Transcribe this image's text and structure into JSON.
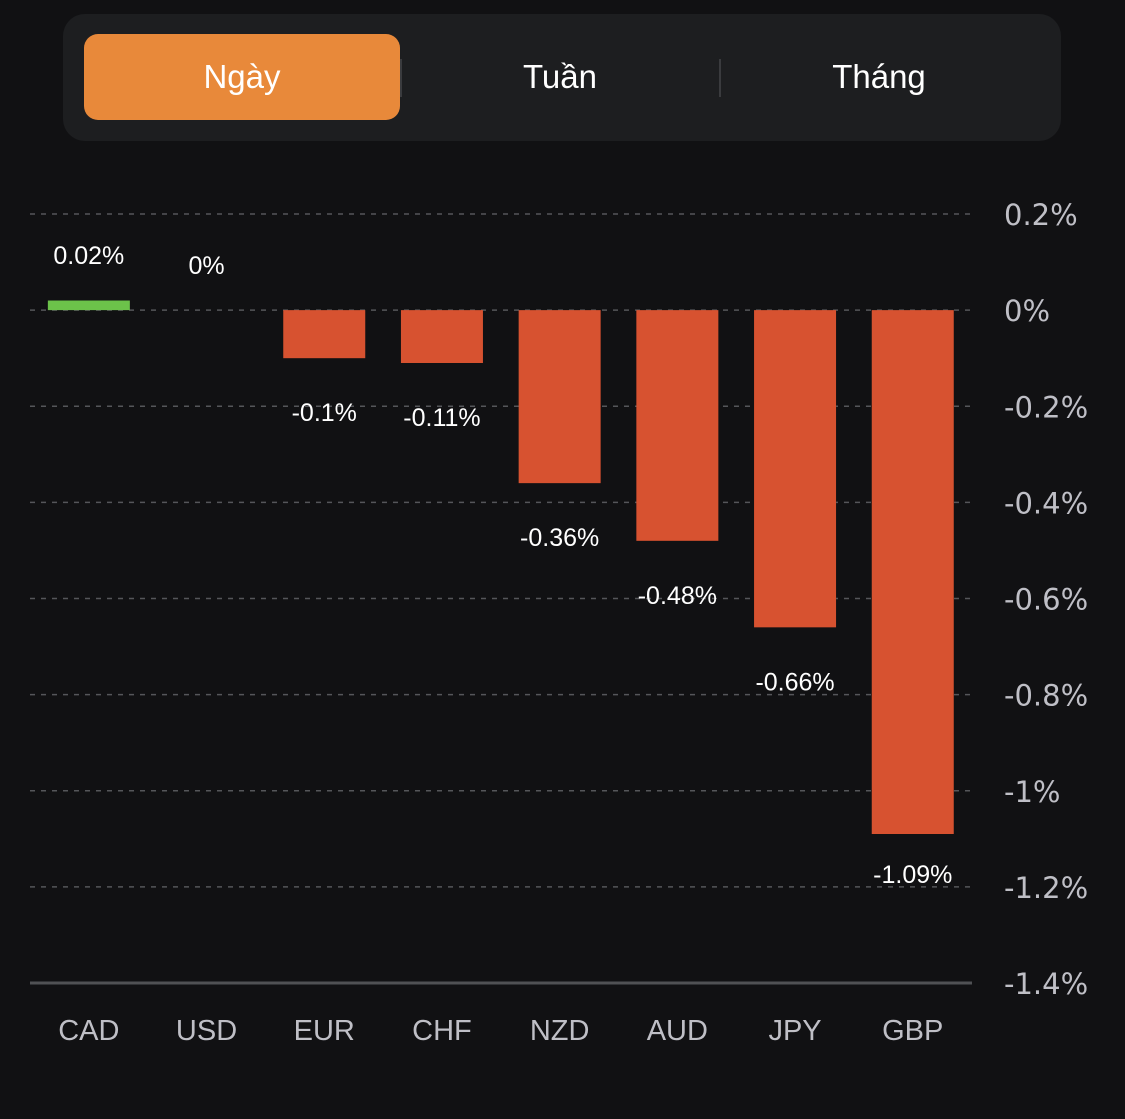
{
  "tabs": [
    {
      "label": "Ngày",
      "active": true
    },
    {
      "label": "Tuần",
      "active": false
    },
    {
      "label": "Tháng",
      "active": false
    }
  ],
  "colors": {
    "accent": "#e8893a",
    "positive": "#6cc24a",
    "negative": "#d75230",
    "background": "#111113",
    "axis_text": "#bfbfc6",
    "label_text": "#ffffff",
    "grid": "#55565a"
  },
  "chart_data": {
    "type": "bar",
    "title": "",
    "xlabel": "",
    "ylabel": "",
    "categories": [
      "CAD",
      "USD",
      "EUR",
      "CHF",
      "NZD",
      "AUD",
      "JPY",
      "GBP"
    ],
    "values": [
      0.02,
      0,
      -0.1,
      -0.11,
      -0.36,
      -0.48,
      -0.66,
      -1.09
    ],
    "data_labels": [
      "0.02%",
      "0%",
      "-0.1%",
      "-0.11%",
      "-0.36%",
      "-0.48%",
      "-0.66%",
      "-1.09%"
    ],
    "ylim": [
      -1.4,
      0.2
    ],
    "yticks": [
      0.2,
      0,
      -0.2,
      -0.4,
      -0.6,
      -0.8,
      -1,
      -1.2,
      -1.4
    ],
    "ytick_labels": [
      "0.2%",
      "0%",
      "-0.2%",
      "-0.4%",
      "-0.6%",
      "-0.8%",
      "-1%",
      "-1.2%",
      "-1.4%"
    ],
    "y_axis_position": "right",
    "grid": true,
    "legend": "none"
  }
}
